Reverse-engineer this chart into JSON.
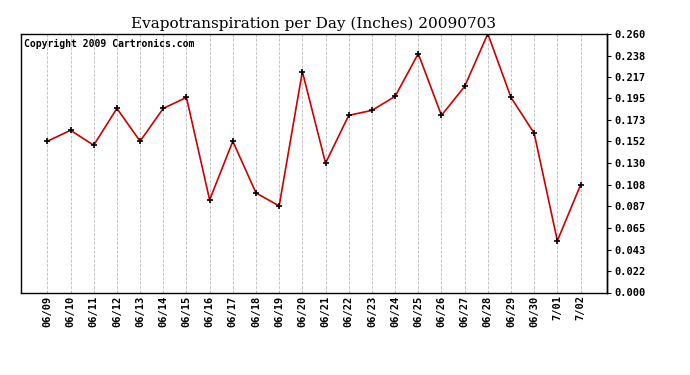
{
  "title": "Evapotranspiration per Day (Inches) 20090703",
  "copyright_text": "Copyright 2009 Cartronics.com",
  "categories": [
    "06/09",
    "06/10",
    "06/11",
    "06/12",
    "06/13",
    "06/14",
    "06/15",
    "06/16",
    "06/17",
    "06/18",
    "06/19",
    "06/20",
    "06/21",
    "06/22",
    "06/23",
    "06/24",
    "06/25",
    "06/26",
    "06/27",
    "06/28",
    "06/29",
    "06/30",
    "7/01",
    "7/02"
  ],
  "values": [
    0.152,
    0.163,
    0.148,
    0.185,
    0.152,
    0.185,
    0.196,
    0.093,
    0.152,
    0.1,
    0.087,
    0.222,
    0.13,
    0.178,
    0.183,
    0.197,
    0.24,
    0.178,
    0.207,
    0.26,
    0.196,
    0.16,
    0.052,
    0.108
  ],
  "yticks": [
    0.0,
    0.022,
    0.043,
    0.065,
    0.087,
    0.108,
    0.13,
    0.152,
    0.173,
    0.195,
    0.217,
    0.238,
    0.26
  ],
  "ylim": [
    0.0,
    0.26
  ],
  "line_color": "#cc0000",
  "marker_color": "#000000",
  "bg_color": "#ffffff",
  "plot_bg_color": "#ffffff",
  "grid_color": "#bbbbbb",
  "title_fontsize": 11,
  "tick_fontsize": 7.5,
  "copyright_fontsize": 7,
  "fig_width": 6.9,
  "fig_height": 3.75,
  "dpi": 100
}
